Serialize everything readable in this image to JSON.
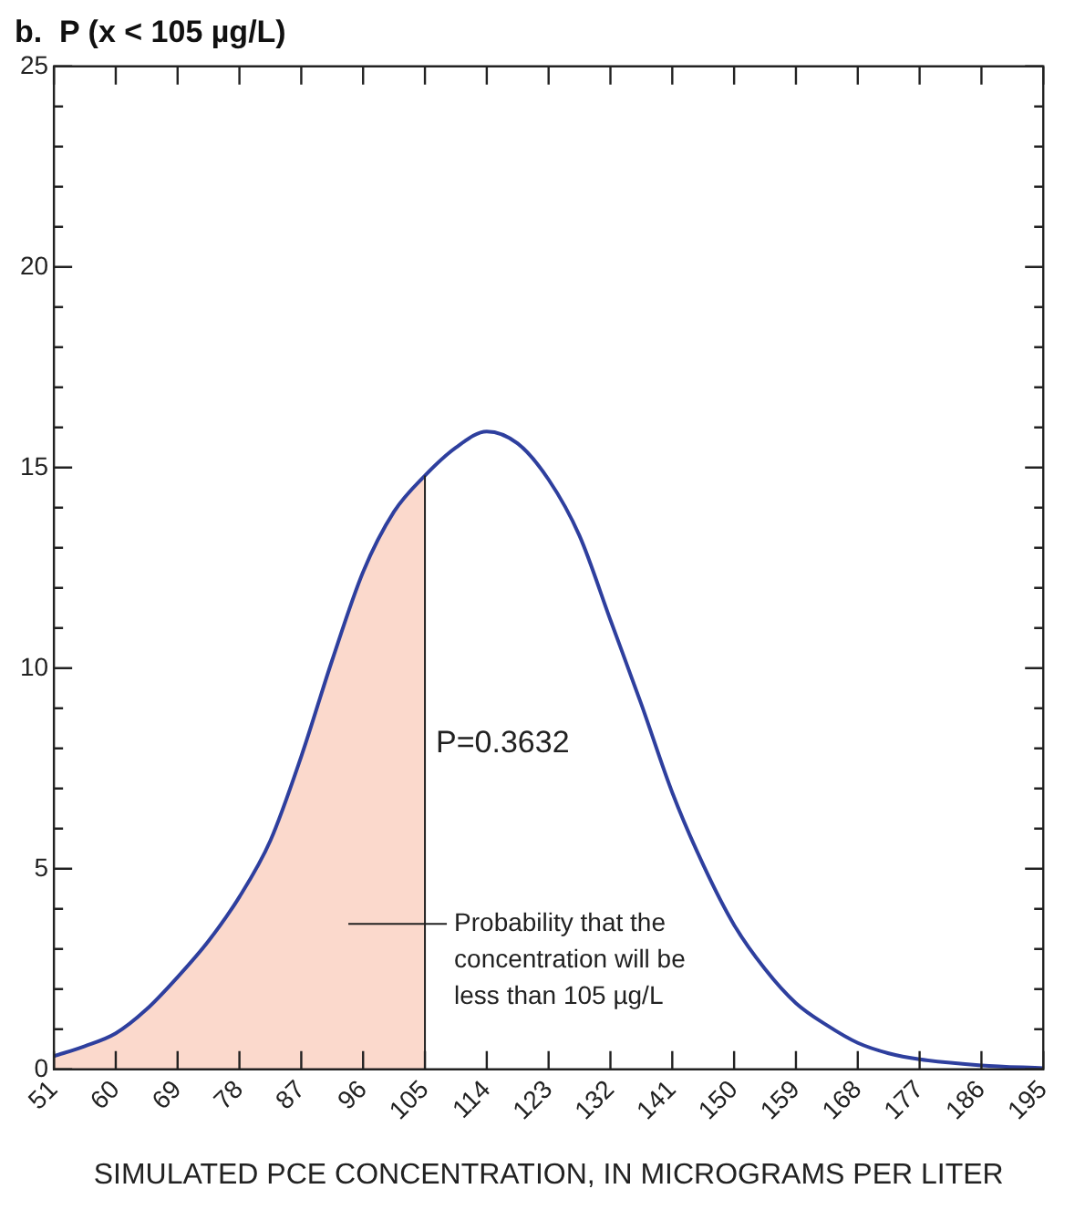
{
  "chart_data": {
    "type": "line",
    "title": "b.  P (x < 105 µg/L)",
    "xlabel": "SIMULATED PCE CONCENTRATION, IN MICROGRAMS PER LITER",
    "xlim": [
      51,
      195
    ],
    "xticks": [
      51,
      60,
      69,
      78,
      87,
      96,
      105,
      114,
      123,
      132,
      141,
      150,
      159,
      168,
      177,
      186,
      195
    ],
    "ylim": [
      0,
      25
    ],
    "yticks": [
      0,
      {
        "value": 1,
        "label": null
      },
      {
        "value": 2,
        "label": null
      },
      {
        "value": 3,
        "label": null
      },
      {
        "value": 4,
        "label": null
      },
      5,
      {
        "value": 6,
        "label": null
      },
      {
        "value": 7,
        "label": null
      },
      {
        "value": 8,
        "label": null
      },
      {
        "value": 9,
        "label": null
      },
      10,
      {
        "value": 11,
        "label": null
      },
      {
        "value": 12,
        "label": null
      },
      {
        "value": 13,
        "label": null
      },
      {
        "value": 14,
        "label": null
      },
      15,
      {
        "value": 16,
        "label": null
      },
      {
        "value": 17,
        "label": null
      },
      {
        "value": 18,
        "label": null
      },
      {
        "value": 19,
        "label": null
      },
      20,
      {
        "value": 21,
        "label": null
      },
      {
        "value": 22,
        "label": null
      },
      {
        "value": 23,
        "label": null
      },
      {
        "value": 24,
        "label": null
      },
      25
    ],
    "grid": false,
    "legend": false,
    "marker": "none",
    "line_style": "solid",
    "series": [
      {
        "type": "area",
        "color": "#fbd9cc",
        "x": [
          51,
          55.5,
          60,
          64.5,
          69,
          73.5,
          78,
          82.5,
          87,
          91.5,
          96,
          100.5,
          105
        ],
        "values": [
          0.33,
          0.58,
          0.9,
          1.5,
          2.3,
          3.2,
          4.3,
          5.7,
          7.8,
          10.2,
          12.4,
          13.9,
          14.8
        ]
      },
      {
        "color": "#2e3f9e",
        "x": [
          51,
          55.5,
          60,
          64.5,
          69,
          73.5,
          78,
          82.5,
          87,
          91.5,
          96,
          100.5,
          105,
          109.5,
          114,
          118.5,
          123,
          127.5,
          132,
          136.5,
          141,
          145.5,
          150,
          154.5,
          159,
          163.5,
          168,
          172.5,
          177,
          186,
          195
        ],
        "values": [
          0.33,
          0.58,
          0.9,
          1.5,
          2.3,
          3.2,
          4.3,
          5.7,
          7.8,
          10.2,
          12.4,
          13.9,
          14.8,
          15.5,
          15.9,
          15.6,
          14.7,
          13.3,
          11.2,
          9.1,
          6.9,
          5.1,
          3.6,
          2.5,
          1.65,
          1.1,
          0.66,
          0.4,
          0.25,
          0.1,
          0.03
        ]
      }
    ],
    "annotations": [
      "P=0.3632",
      "Probability that the\nconcentration will be\nless than 105 µg/L"
    ]
  }
}
